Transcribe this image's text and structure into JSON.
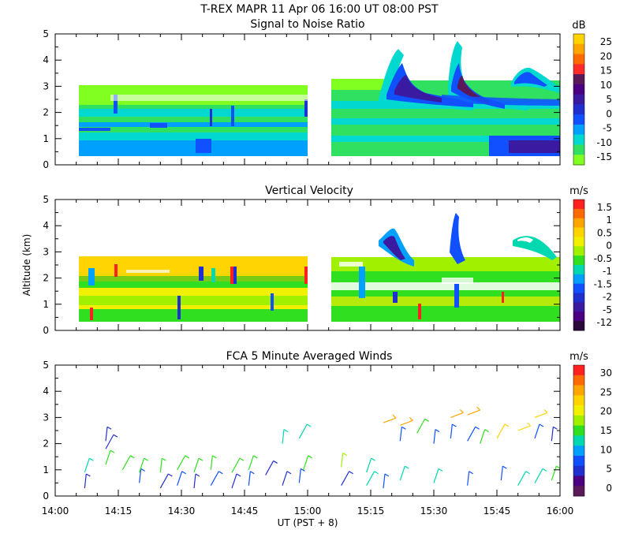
{
  "figure": {
    "title_line1": "T-REX   MAPR 11 Apr 06   16:00 UT   08:00   PST",
    "x_axis_label": "UT  (PST + 8)",
    "x_tick_labels": [
      "14:00",
      "14:15",
      "14:30",
      "14:45",
      "15:00",
      "15:15",
      "15:30",
      "15:45",
      "16:00"
    ]
  },
  "chart_data": [
    {
      "type": "heatmap",
      "title": "Signal to Noise Ratio",
      "ylabel": "",
      "xlabel": "UT  (PST + 8)",
      "xlim": [
        "14:00",
        "16:00"
      ],
      "ylim": [
        0,
        5
      ],
      "y_ticks": [
        "0",
        "1",
        "2",
        "3",
        "4",
        "5"
      ],
      "colorbar": {
        "unit": "dB",
        "labels": [
          "25",
          "20",
          "15",
          "10",
          "5",
          "0",
          "-5",
          "-10",
          "-15"
        ],
        "colors": [
          "#ffd400",
          "#ffa500",
          "#ff6a00",
          "#ff2a2a",
          "#5a1a5a",
          "#4b0082",
          "#3a1aa0",
          "#2030d0",
          "#1050ff",
          "#00a0ff",
          "#00d8d0",
          "#30e060",
          "#80ff20"
        ]
      },
      "data_gap": [
        "15:00",
        "15:08"
      ],
      "description_cells": []
    },
    {
      "type": "heatmap",
      "title": "Vertical Velocity",
      "ylabel": "Altitude (km)",
      "xlabel": "UT  (PST + 8)",
      "xlim": [
        "14:00",
        "16:00"
      ],
      "ylim": [
        0,
        5
      ],
      "y_ticks": [
        "0",
        "1",
        "2",
        "3",
        "4",
        "5"
      ],
      "colorbar": {
        "unit": "m/s",
        "labels": [
          "1.5",
          "1",
          "0.5",
          "0",
          "-0.5",
          "-1",
          "-1.5",
          "-2",
          "-5",
          "-12"
        ],
        "colors": [
          "#ff2020",
          "#ff6a00",
          "#ffa500",
          "#ffd400",
          "#f0f000",
          "#a0f000",
          "#30e020",
          "#00d8b0",
          "#00a0ff",
          "#1050ff",
          "#2030d0",
          "#3a1aa0",
          "#4b0082",
          "#2a0a3a"
        ]
      },
      "data_gap": [
        "15:00",
        "15:08"
      ]
    },
    {
      "type": "scatter",
      "title": "FCA 5 Minute Averaged Winds",
      "ylabel": "",
      "xlabel": "UT  (PST + 8)",
      "xlim": [
        "14:00",
        "16:00"
      ],
      "ylim": [
        0,
        5
      ],
      "y_ticks": [
        "0",
        "1",
        "2",
        "3",
        "4",
        "5"
      ],
      "colorbar": {
        "unit": "m/s",
        "labels": [
          "30",
          "25",
          "20",
          "15",
          "10",
          "5",
          "0"
        ],
        "colors": [
          "#ff2020",
          "#ff6a00",
          "#ffa500",
          "#ffd400",
          "#f0f000",
          "#a0f000",
          "#30e020",
          "#00d8b0",
          "#00a0ff",
          "#1050ff",
          "#2030d0",
          "#4b0082",
          "#5a1a5a"
        ]
      },
      "barbs": [
        {
          "t": 7,
          "alt": 0.3,
          "speed": 4
        },
        {
          "t": 7,
          "alt": 0.9,
          "speed": 9
        },
        {
          "t": 12,
          "alt": 1.8,
          "speed": 3
        },
        {
          "t": 12,
          "alt": 2.1,
          "speed": 4
        },
        {
          "t": 12,
          "alt": 1.2,
          "speed": 11
        },
        {
          "t": 16,
          "alt": 1.0,
          "speed": 10
        },
        {
          "t": 20,
          "alt": 0.5,
          "speed": 6
        },
        {
          "t": 20,
          "alt": 0.9,
          "speed": 11
        },
        {
          "t": 25,
          "alt": 0.3,
          "speed": 4
        },
        {
          "t": 25,
          "alt": 0.9,
          "speed": 10
        },
        {
          "t": 29,
          "alt": 0.4,
          "speed": 5
        },
        {
          "t": 29,
          "alt": 1.0,
          "speed": 12
        },
        {
          "t": 33,
          "alt": 0.3,
          "speed": 4
        },
        {
          "t": 33,
          "alt": 0.9,
          "speed": 11
        },
        {
          "t": 37,
          "alt": 0.4,
          "speed": 5
        },
        {
          "t": 37,
          "alt": 1.0,
          "speed": 12
        },
        {
          "t": 42,
          "alt": 0.3,
          "speed": 4
        },
        {
          "t": 42,
          "alt": 0.9,
          "speed": 11
        },
        {
          "t": 46,
          "alt": 0.4,
          "speed": 5
        },
        {
          "t": 46,
          "alt": 1.0,
          "speed": 12
        },
        {
          "t": 50,
          "alt": 0.8,
          "speed": 4
        },
        {
          "t": 54,
          "alt": 2.0,
          "speed": 7
        },
        {
          "t": 54,
          "alt": 0.4,
          "speed": 4
        },
        {
          "t": 58,
          "alt": 2.2,
          "speed": 9
        },
        {
          "t": 58,
          "alt": 0.5,
          "speed": 5
        },
        {
          "t": 59,
          "alt": 1.0,
          "speed": 12
        },
        {
          "t": 68,
          "alt": 0.4,
          "speed": 3
        },
        {
          "t": 68,
          "alt": 1.1,
          "speed": 15
        },
        {
          "t": 74,
          "alt": 0.9,
          "speed": 8
        },
        {
          "t": 74,
          "alt": 0.4,
          "speed": 7
        },
        {
          "t": 78,
          "alt": 0.3,
          "speed": 6
        },
        {
          "t": 78,
          "alt": 2.8,
          "speed": 22
        },
        {
          "t": 82,
          "alt": 2.7,
          "speed": 24
        },
        {
          "t": 82,
          "alt": 2.1,
          "speed": 6
        },
        {
          "t": 82,
          "alt": 0.6,
          "speed": 8
        },
        {
          "t": 86,
          "alt": 2.4,
          "speed": 12
        },
        {
          "t": 90,
          "alt": 2.0,
          "speed": 5
        },
        {
          "t": 90,
          "alt": 0.5,
          "speed": 7
        },
        {
          "t": 94,
          "alt": 3.0,
          "speed": 24
        },
        {
          "t": 94,
          "alt": 2.2,
          "speed": 6
        },
        {
          "t": 98,
          "alt": 3.1,
          "speed": 22
        },
        {
          "t": 98,
          "alt": 2.1,
          "speed": 5
        },
        {
          "t": 98,
          "alt": 0.4,
          "speed": 6
        },
        {
          "t": 101,
          "alt": 2.0,
          "speed": 12
        },
        {
          "t": 105,
          "alt": 2.2,
          "speed": 18
        },
        {
          "t": 106,
          "alt": 0.6,
          "speed": 6
        },
        {
          "t": 110,
          "alt": 2.5,
          "speed": 18
        },
        {
          "t": 110,
          "alt": 0.4,
          "speed": 8
        },
        {
          "t": 114,
          "alt": 3.0,
          "speed": 20
        },
        {
          "t": 114,
          "alt": 2.2,
          "speed": 6
        },
        {
          "t": 114,
          "alt": 0.5,
          "speed": 9
        },
        {
          "t": 118,
          "alt": 2.1,
          "speed": 4
        },
        {
          "t": 118,
          "alt": 0.6,
          "speed": 10
        }
      ]
    }
  ]
}
